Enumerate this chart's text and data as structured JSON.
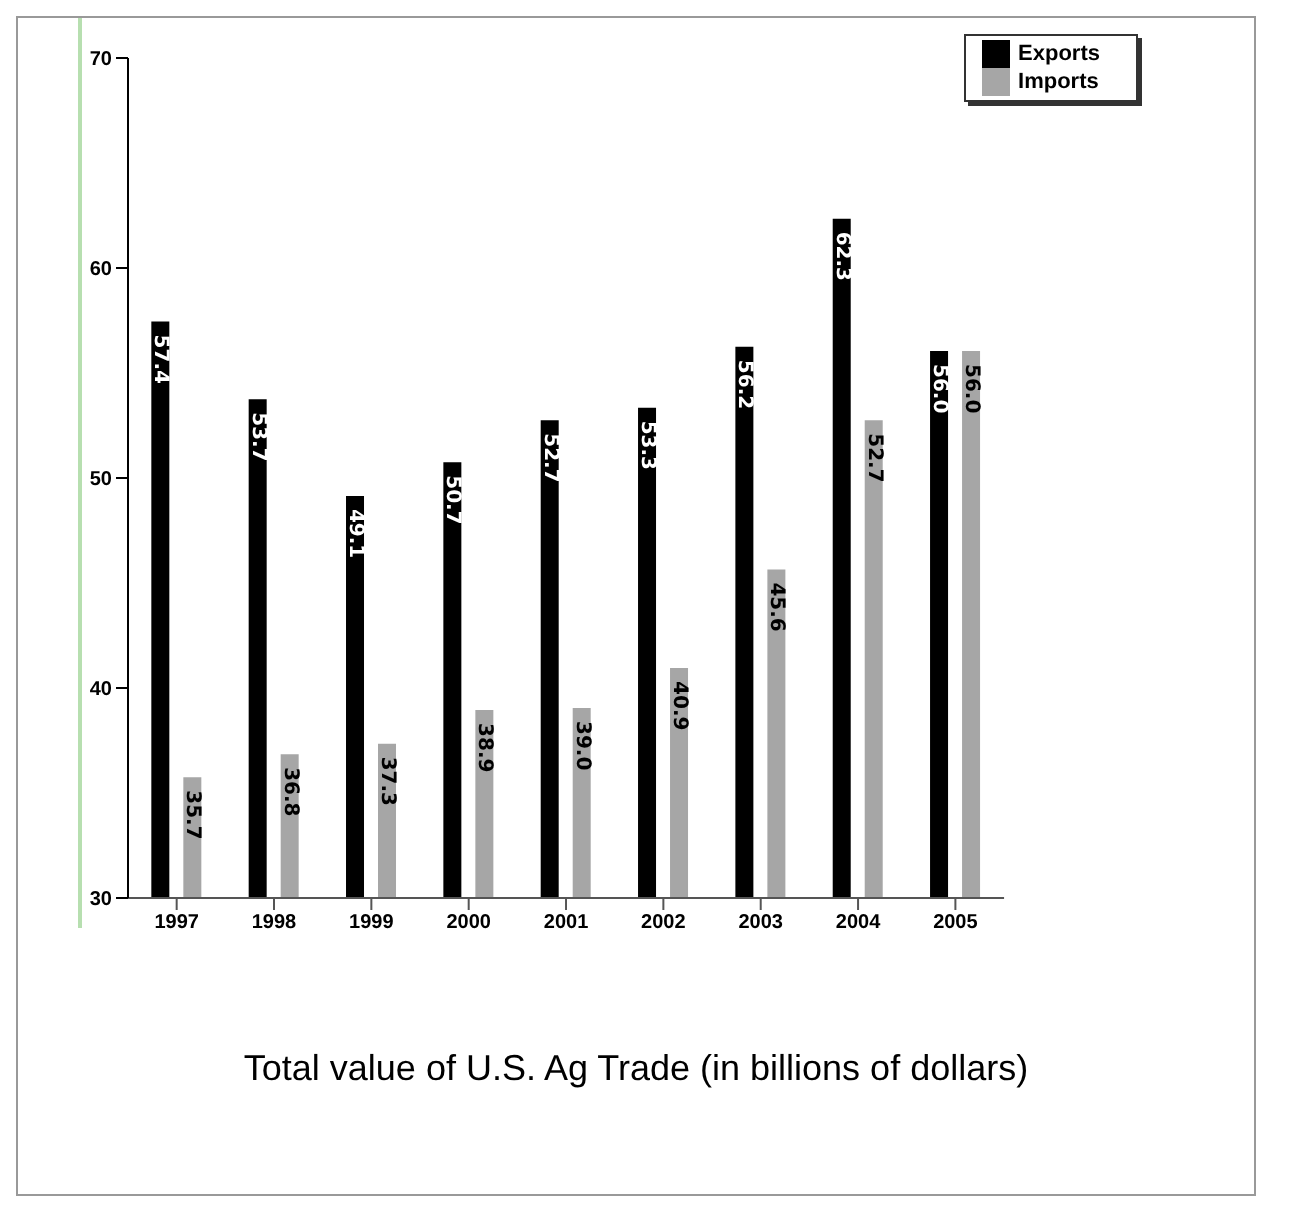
{
  "chart_data": {
    "type": "bar",
    "title": "Total value of U.S. Ag Trade (in billions of dollars)",
    "categories": [
      "1997",
      "1998",
      "1999",
      "2000",
      "2001",
      "2002",
      "2003",
      "2004",
      "2005"
    ],
    "series": [
      {
        "name": "Exports",
        "color": "#000000",
        "values": [
          57.4,
          53.7,
          49.1,
          50.7,
          52.7,
          53.3,
          56.2,
          62.3,
          56.0
        ],
        "value_labels": [
          "57.4",
          "53.7",
          "49.1",
          "50.7",
          "52.7",
          "53.3",
          "56.2",
          "62.3",
          "56.0"
        ]
      },
      {
        "name": "Imports",
        "color": "#a6a6a6",
        "values": [
          35.7,
          36.8,
          37.3,
          38.9,
          39.0,
          40.9,
          45.6,
          52.7,
          56.0
        ],
        "value_labels": [
          "35.7",
          "36.8",
          "37.3",
          "38.9",
          "39.0",
          "40.9",
          "45.6",
          "52.7",
          "56.0"
        ]
      }
    ],
    "ylim": [
      30,
      70
    ],
    "yticks": [
      30,
      40,
      50,
      60,
      70
    ],
    "grid": false,
    "legend": "top right"
  }
}
